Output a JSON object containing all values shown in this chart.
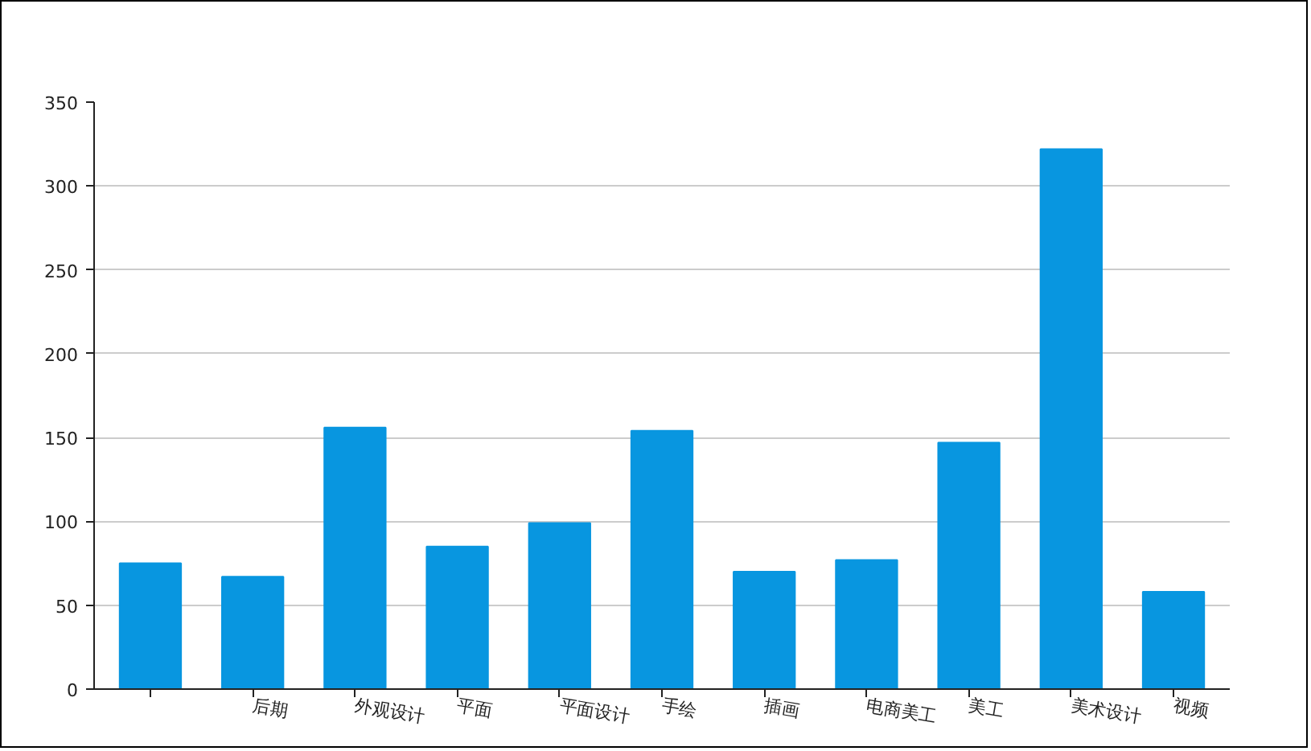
{
  "chart_data": {
    "type": "bar",
    "categories": [
      null,
      "后期",
      "外观设计",
      "平面",
      "平面设计",
      "手绘",
      "插画",
      "电商美工",
      "美工",
      "美术设计",
      "视频"
    ],
    "values": [
      75,
      67,
      156,
      85,
      99,
      154,
      70,
      77,
      147,
      322,
      58
    ],
    "color": "#0896e0",
    "ylim": [
      0,
      350
    ],
    "yticks": [
      0,
      50,
      100,
      150,
      200,
      250,
      300,
      350
    ],
    "grid": "y"
  }
}
